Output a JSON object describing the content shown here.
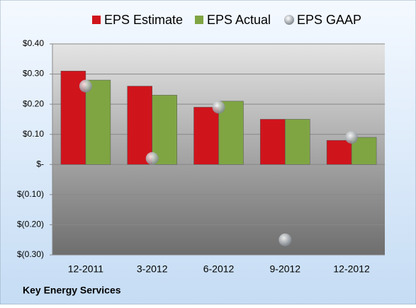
{
  "chart_data": {
    "type": "bar",
    "footer": "Key Energy Services",
    "categories": [
      "12-2011",
      "3-2012",
      "6-2012",
      "9-2012",
      "12-2012"
    ],
    "series": [
      {
        "name": "EPS Estimate",
        "color": "#d0141c",
        "style": "bar",
        "values": [
          0.31,
          0.26,
          0.19,
          0.15,
          0.08
        ]
      },
      {
        "name": "EPS Actual",
        "color": "#7fa543",
        "style": "bar",
        "values": [
          0.28,
          0.23,
          0.21,
          0.15,
          0.09
        ]
      },
      {
        "name": "EPS GAAP",
        "color": "#a9aeb3",
        "style": "marker",
        "values": [
          0.26,
          0.02,
          0.19,
          -0.25,
          0.09
        ]
      }
    ],
    "ylim": [
      -0.3,
      0.4
    ],
    "yticks": [
      {
        "value": 0.4,
        "label": "$0.40"
      },
      {
        "value": 0.3,
        "label": "$0.30"
      },
      {
        "value": 0.2,
        "label": "$0.20"
      },
      {
        "value": 0.1,
        "label": "$0.10"
      },
      {
        "value": 0,
        "label": "$-"
      },
      {
        "value": -0.1,
        "label": "$(0.10)"
      },
      {
        "value": -0.2,
        "label": "$(0.20)"
      },
      {
        "value": -0.3,
        "label": "$(0.30)"
      }
    ],
    "grid": true,
    "legend": "top"
  }
}
